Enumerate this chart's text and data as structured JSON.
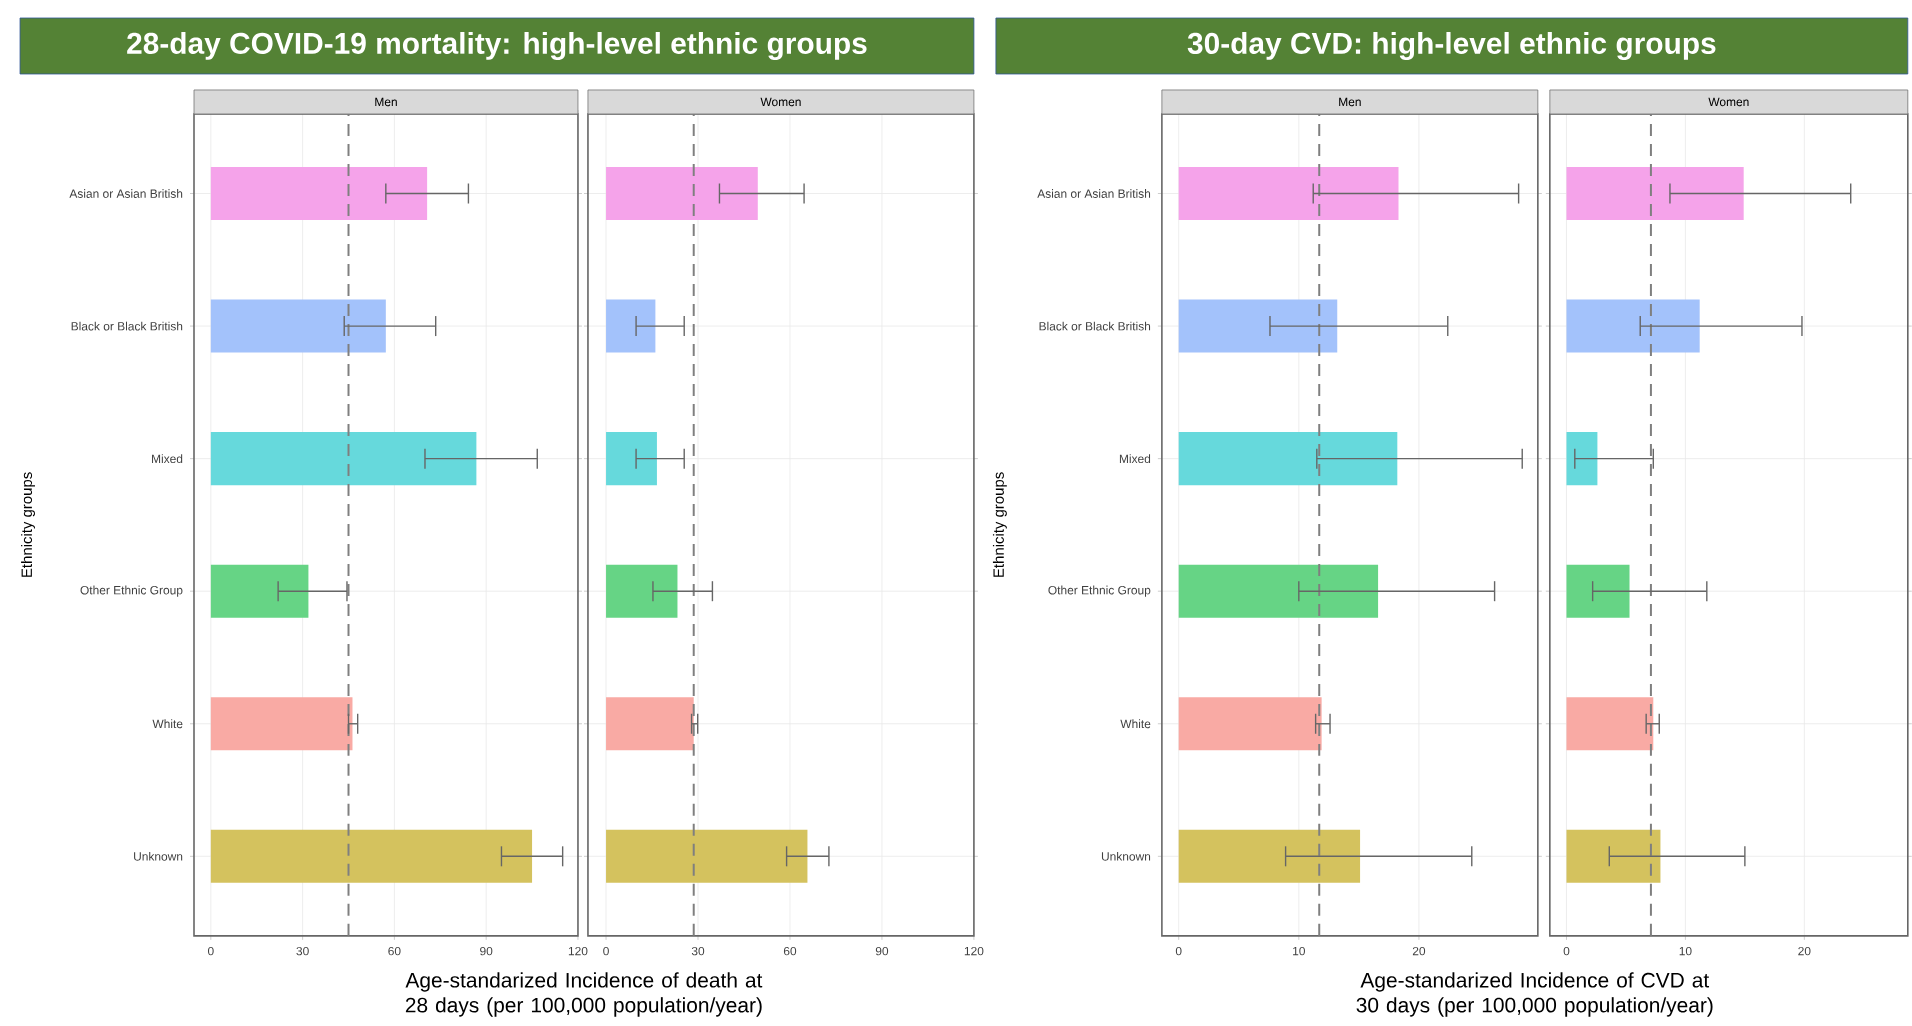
{
  "chart_data": [
    {
      "type": "bar",
      "orientation": "horizontal",
      "title": "28-day COVID-19 mortality: high-level ethnic groups",
      "subtitle": "Men",
      "xlabel": "Age-standarized Incidence of death at 28 days (per 100,000 population/year)",
      "ylabel": "Ethnicity groups",
      "categories": [
        "Asian or Asian British",
        "Black or Black British",
        "Mixed",
        "Other Ethnic Group",
        "White",
        "Unknown"
      ],
      "values": [
        70.7,
        57.2,
        86.8,
        31.9,
        46.3,
        105
      ],
      "errors": [
        [
          57.2,
          84.2
        ],
        [
          43.6,
          73.5
        ],
        [
          70,
          106.7
        ],
        [
          22,
          44.5
        ],
        [
          45,
          48
        ],
        [
          95,
          115
        ]
      ],
      "colors": [
        "#f5a3ea",
        "#a3c2fb",
        "#66d9dc",
        "#66d485",
        "#f9aaa4",
        "#d4c25e"
      ],
      "xlim": [
        -5.5,
        120
      ],
      "xticks": [
        0,
        30,
        60,
        90,
        120
      ],
      "grid": true,
      "ref_lines": [
        {
          "axis": "x",
          "value": 45,
          "color": "#7f7f7f",
          "line_style": "dashed"
        }
      ]
    },
    {
      "type": "bar",
      "orientation": "horizontal",
      "subtitle": "Women",
      "categories": [
        null,
        null,
        null,
        null,
        null,
        null
      ],
      "values": [
        49.5,
        16.1,
        16.6,
        23.3,
        28.6,
        65.7
      ],
      "errors": [
        [
          37,
          64.6
        ],
        [
          9.8,
          25.5
        ],
        [
          9.8,
          25.5
        ],
        [
          15.3,
          34.7
        ],
        [
          27.9,
          29.9
        ],
        [
          58.9,
          72.7
        ]
      ],
      "colors": [
        "#f5a3ea",
        "#a3c2fb",
        "#66d9dc",
        "#66d485",
        "#f9aaa4",
        "#d4c25e"
      ],
      "xlim": [
        -5.9,
        120
      ],
      "xticks": [
        0,
        30,
        60,
        90,
        120
      ],
      "grid": true,
      "tick_labels": "x",
      "ref_lines": [
        {
          "axis": "x",
          "value": 28.6,
          "color": "#7f7f7f",
          "line_style": "dashed"
        }
      ]
    },
    {
      "type": "bar",
      "orientation": "horizontal",
      "title": "30-day CVD: high-level ethnic groups",
      "subtitle": "Men",
      "xlabel": "Age-standarized Incidence of CVD at 30 days (per 100,000 population/year)",
      "ylabel": "Ethnicity groups",
      "categories": [
        "Asian or Asian British",
        "Black or Black British",
        "Mixed",
        "Other Ethnic Group",
        "White",
        "Unknown"
      ],
      "values": [
        18.3,
        13.2,
        18.2,
        16.6,
        11.9,
        15.1
      ],
      "errors": [
        [
          11.2,
          28.3
        ],
        [
          7.6,
          22.4
        ],
        [
          11.5,
          28.6
        ],
        [
          10,
          26.3
        ],
        [
          11.4,
          12.6
        ],
        [
          8.9,
          24.4
        ]
      ],
      "colors": [
        "#f5a3ea",
        "#a3c2fb",
        "#66d9dc",
        "#66d485",
        "#f9aaa4",
        "#d4c25e"
      ],
      "xlim": [
        -1.4,
        29.9
      ],
      "xticks": [
        0,
        10,
        20
      ],
      "grid": true,
      "ref_lines": [
        {
          "axis": "x",
          "value": 11.7,
          "color": "#7f7f7f",
          "line_style": "dashed"
        }
      ]
    },
    {
      "type": "bar",
      "orientation": "horizontal",
      "subtitle": "Women",
      "categories": [
        null,
        null,
        null,
        null,
        null,
        null
      ],
      "values": [
        14.9,
        11.2,
        2.6,
        5.3,
        7.3,
        7.9
      ],
      "errors": [
        [
          8.7,
          23.9
        ],
        [
          6.2,
          19.8
        ],
        [
          0.7,
          7.3
        ],
        [
          2.2,
          11.8
        ],
        [
          6.7,
          7.8
        ],
        [
          3.6,
          15
        ]
      ],
      "colors": [
        "#f5a3ea",
        "#a3c2fb",
        "#66d9dc",
        "#66d485",
        "#f9aaa4",
        "#d4c25e"
      ],
      "xlim": [
        -1.4,
        28.7
      ],
      "xticks": [
        0,
        10,
        20
      ],
      "grid": true,
      "tick_labels": "x",
      "ref_lines": [
        {
          "axis": "x",
          "value": 7.1,
          "color": "#7f7f7f",
          "line_style": "dashed"
        }
      ]
    }
  ]
}
